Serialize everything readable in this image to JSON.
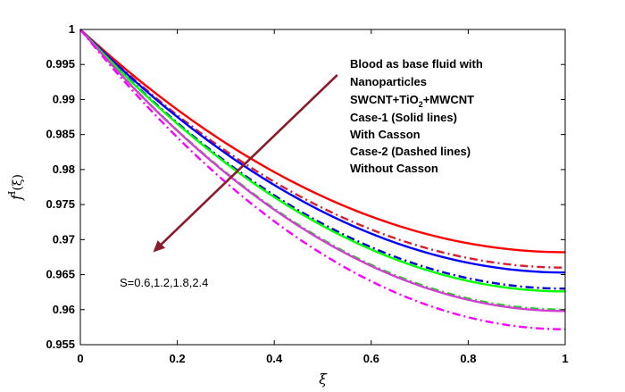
{
  "chart_data": {
    "type": "line",
    "title": "",
    "xlabel": "ξ",
    "ylabel_main": "f",
    "ylabel_sup": "I",
    "ylabel_arg": "(ξ)",
    "xlim": [
      0,
      1
    ],
    "ylim": [
      0.955,
      1
    ],
    "x_ticks": [
      0,
      0.2,
      0.4,
      0.6,
      0.8,
      1
    ],
    "x_tick_labels": [
      "0",
      "0.2",
      "0.4",
      "0.6",
      "0.8",
      "1"
    ],
    "y_ticks": [
      0.955,
      0.96,
      0.965,
      0.97,
      0.975,
      0.98,
      0.985,
      0.99,
      0.995,
      1
    ],
    "y_tick_labels": [
      "0.955",
      "0.96",
      "0.965",
      "0.97",
      "0.975",
      "0.98",
      "0.985",
      "0.99",
      "0.995",
      "1"
    ],
    "grid": false,
    "legend_lines": [
      "Blood as base fluid with",
      "Nanoparticles",
      "SWCNT+TiO2+MWCNT",
      "Case-1 (Solid lines)",
      "With Casson",
      "Case-2 (Dashed lines)",
      "Without Casson"
    ],
    "legend_formula": {
      "pre": "SWCNT+TiO",
      "sub": "2",
      "post": "+MWCNT"
    },
    "arrow_annotation": {
      "text": "S=0.6,1.2,1.8,2.4",
      "from": [
        0.53,
        0.9935
      ],
      "to": [
        0.15,
        0.9682
      ],
      "color": "#8b1a2b"
    },
    "series": [
      {
        "style": "solid",
        "color": "#ff0000",
        "end_value": 0.9682,
        "min_x": 1.0
      },
      {
        "style": "dashed",
        "color": "#d42030",
        "end_value": 0.966,
        "min_x": 1.0
      },
      {
        "style": "solid",
        "color": "#0000ff",
        "end_value": 0.9653,
        "min_x": 1.0
      },
      {
        "style": "dashed",
        "color": "#0000cc",
        "end_value": 0.963,
        "min_x": 1.0
      },
      {
        "style": "solid",
        "color": "#00ff00",
        "end_value": 0.9626,
        "min_x": 1.0
      },
      {
        "style": "dashed",
        "color": "#22cc22",
        "end_value": 0.96,
        "min_x": 1.0
      },
      {
        "style": "solid",
        "color": "#d040d0",
        "end_value": 0.9598,
        "min_x": 1.0
      },
      {
        "style": "dashed",
        "color": "#ff00ff",
        "end_value": 0.9572,
        "min_x": 1.0
      }
    ]
  }
}
